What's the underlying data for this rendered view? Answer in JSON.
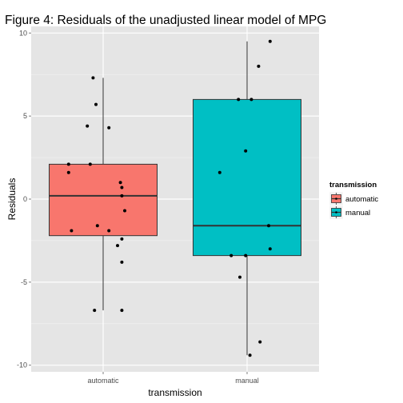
{
  "chart_data": {
    "type": "boxplot",
    "title": "Figure 4: Residuals of the unadjusted linear model of MPG",
    "xlabel": "transmission",
    "ylabel": "Residuals",
    "categories": [
      "automatic",
      "manual"
    ],
    "ylim": [
      -10.4,
      10.4
    ],
    "yticks": [
      -10,
      -5,
      0,
      5,
      10
    ],
    "grid": true,
    "legend": {
      "title": "transmission",
      "placement": "right",
      "entries": [
        "automatic",
        "manual"
      ]
    },
    "colors": {
      "automatic": "#f8766d",
      "manual": "#00bfc4",
      "panel_background": "#e5e5e5",
      "grid": "#ffffff",
      "points": "#000000"
    },
    "boxes": [
      {
        "category": "automatic",
        "whisker_low": -6.7,
        "q1": -2.2,
        "median": 0.2,
        "q3": 2.1,
        "whisker_high": 7.3
      },
      {
        "category": "manual",
        "whisker_low": -9.4,
        "q1": -3.4,
        "median": -1.6,
        "q3": 6.0,
        "whisker_high": 9.5
      }
    ],
    "points": [
      {
        "category": "automatic",
        "jitter": -0.24,
        "y": 1.6
      },
      {
        "category": "automatic",
        "jitter": -0.24,
        "y": 2.1
      },
      {
        "category": "automatic",
        "jitter": -0.22,
        "y": -1.9
      },
      {
        "category": "automatic",
        "jitter": -0.11,
        "y": 4.4
      },
      {
        "category": "automatic",
        "jitter": -0.07,
        "y": 7.3
      },
      {
        "category": "automatic",
        "jitter": -0.06,
        "y": -6.7
      },
      {
        "category": "automatic",
        "jitter": -0.05,
        "y": 5.7
      },
      {
        "category": "automatic",
        "jitter": -0.04,
        "y": -1.6
      },
      {
        "category": "automatic",
        "jitter": -0.09,
        "y": 2.1
      },
      {
        "category": "automatic",
        "jitter": 0.04,
        "y": 4.3
      },
      {
        "category": "automatic",
        "jitter": 0.04,
        "y": -1.9
      },
      {
        "category": "automatic",
        "jitter": 0.1,
        "y": -2.8
      },
      {
        "category": "automatic",
        "jitter": 0.12,
        "y": 1.0
      },
      {
        "category": "automatic",
        "jitter": 0.13,
        "y": 0.7
      },
      {
        "category": "automatic",
        "jitter": 0.13,
        "y": -2.4
      },
      {
        "category": "automatic",
        "jitter": 0.13,
        "y": -3.8
      },
      {
        "category": "automatic",
        "jitter": 0.13,
        "y": 0.2
      },
      {
        "category": "automatic",
        "jitter": 0.15,
        "y": -0.7
      },
      {
        "category": "automatic",
        "jitter": 0.13,
        "y": -6.7
      },
      {
        "category": "manual",
        "jitter": -0.19,
        "y": 1.6
      },
      {
        "category": "manual",
        "jitter": -0.11,
        "y": -3.4
      },
      {
        "category": "manual",
        "jitter": -0.06,
        "y": 6.0
      },
      {
        "category": "manual",
        "jitter": -0.05,
        "y": -4.7
      },
      {
        "category": "manual",
        "jitter": -0.01,
        "y": 2.9
      },
      {
        "category": "manual",
        "jitter": -0.01,
        "y": -3.4
      },
      {
        "category": "manual",
        "jitter": 0.02,
        "y": -9.4
      },
      {
        "category": "manual",
        "jitter": 0.03,
        "y": 6.0
      },
      {
        "category": "manual",
        "jitter": 0.08,
        "y": 8.0
      },
      {
        "category": "manual",
        "jitter": 0.09,
        "y": -8.6
      },
      {
        "category": "manual",
        "jitter": 0.15,
        "y": -1.6
      },
      {
        "category": "manual",
        "jitter": 0.16,
        "y": 9.5
      },
      {
        "category": "manual",
        "jitter": 0.16,
        "y": -3.0
      }
    ]
  }
}
